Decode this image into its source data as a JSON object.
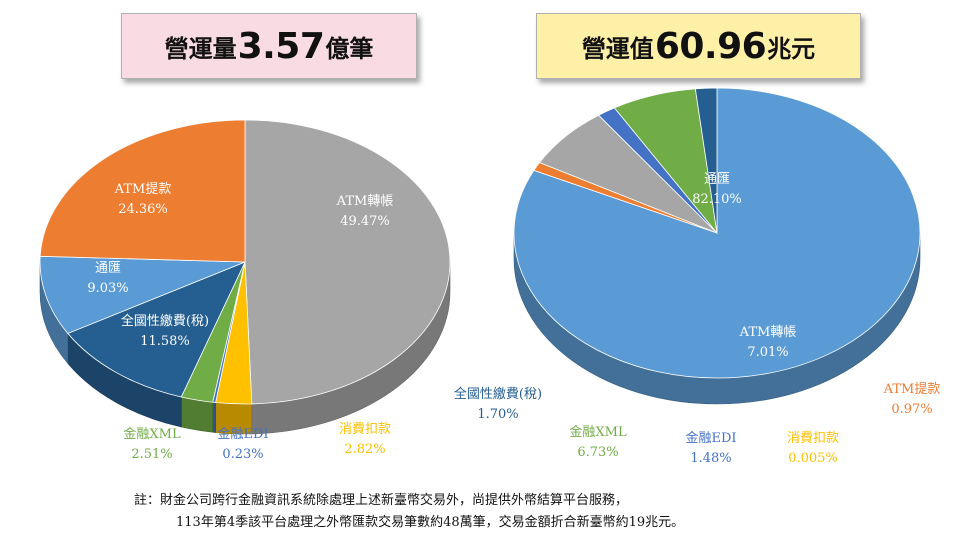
{
  "banners": {
    "left": {
      "label": "營運量",
      "value": "3.57",
      "unit": "億筆"
    },
    "right": {
      "label": "營運值",
      "value": "60.96",
      "unit": "兆元"
    }
  },
  "colors": {
    "atm_transfer": "#a6a6a6",
    "atm_withdraw": "#ed7d31",
    "remittance": "#5b9bd5",
    "tax_payment": "#255e91",
    "fin_xml": "#70ad47",
    "fin_edi": "#4472c4",
    "debit": "#ffc000"
  },
  "chart_data": [
    {
      "type": "pie",
      "slices": [
        {
          "label": "ATM轉帳",
          "value": 49.47,
          "pct": "49.47%",
          "color": "#a6a6a6",
          "label_color": "#ffffff"
        },
        {
          "label": "消費扣款",
          "value": 2.82,
          "pct": "2.82%",
          "color": "#ffc000",
          "label_color": "#ffc000"
        },
        {
          "label": "金融EDI",
          "value": 0.23,
          "pct": "0.23%",
          "color": "#4472c4",
          "label_color": "#4472c4"
        },
        {
          "label": "金融XML",
          "value": 2.51,
          "pct": "2.51%",
          "color": "#70ad47",
          "label_color": "#70ad47"
        },
        {
          "label": "全國性繳費(稅)",
          "value": 11.58,
          "pct": "11.58%",
          "color": "#255e91",
          "label_color": "#ffffff"
        },
        {
          "label": "通匯",
          "value": 9.03,
          "pct": "9.03%",
          "color": "#5b9bd5",
          "label_color": "#ffffff"
        },
        {
          "label": "ATM提款",
          "value": 24.36,
          "pct": "24.36%",
          "color": "#ed7d31",
          "label_color": "#ffffff"
        }
      ]
    },
    {
      "type": "pie",
      "slices": [
        {
          "label": "通匯",
          "value": 82.1,
          "pct": "82.10%",
          "color": "#5b9bd5",
          "label_color": "#ffffff"
        },
        {
          "label": "ATM提款",
          "value": 0.97,
          "pct": "0.97%",
          "color": "#ed7d31",
          "label_color": "#ed7d31"
        },
        {
          "label": "ATM轉帳",
          "value": 7.01,
          "pct": "7.01%",
          "color": "#a6a6a6",
          "label_color": "#ffffff"
        },
        {
          "label": "消費扣款",
          "value": 0.005,
          "pct": "0.005%",
          "color": "#ffc000",
          "label_color": "#ffc000"
        },
        {
          "label": "金融EDI",
          "value": 1.48,
          "pct": "1.48%",
          "color": "#4472c4",
          "label_color": "#4472c4"
        },
        {
          "label": "金融XML",
          "value": 6.73,
          "pct": "6.73%",
          "color": "#70ad47",
          "label_color": "#70ad47"
        },
        {
          "label": "全國性繳費(稅)",
          "value": 1.7,
          "pct": "1.70%",
          "color": "#255e91",
          "label_color": "#255e91"
        }
      ]
    }
  ],
  "note": {
    "line1": "註：財金公司跨行金融資訊系統除處理上述新臺幣交易外，尚提供外幣結算平台服務，",
    "line2": "113年第4季該平台處理之外幣匯款交易筆數約48萬筆，交易金額折合新臺幣約19兆元。"
  }
}
